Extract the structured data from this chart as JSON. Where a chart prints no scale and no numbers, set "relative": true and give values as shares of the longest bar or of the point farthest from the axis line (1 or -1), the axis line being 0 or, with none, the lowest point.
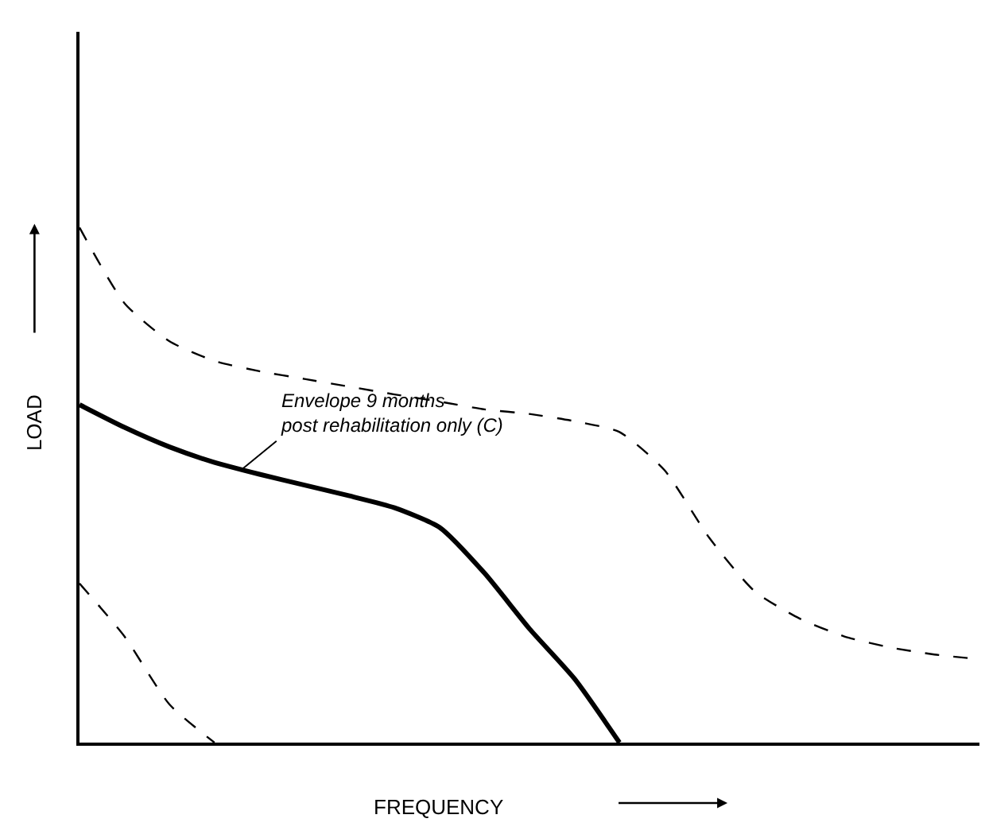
{
  "chart_data": {
    "type": "line",
    "relative": true,
    "xlabel": "FREQUENCY",
    "ylabel": "LOAD",
    "marker": "none",
    "categories": [
      null,
      null,
      null,
      null,
      null,
      null,
      null,
      null,
      null,
      null,
      null,
      null,
      null,
      null,
      null,
      null,
      null,
      null,
      null,
      null,
      null
    ],
    "series": [
      {
        "color": "#000000",
        "line_style": "dashed",
        "values": [
          1.0,
          0.853,
          0.779,
          0.741,
          0.721,
          0.706,
          0.691,
          0.676,
          0.662,
          0.647,
          0.638,
          0.624,
          0.603,
          0.529,
          0.397,
          0.294,
          0.241,
          0.206,
          0.185,
          0.171,
          0.162
        ]
      },
      {
        "color": "#000000",
        "line_style": "solid",
        "values": [
          0.656,
          0.612,
          0.574,
          0.544,
          0.521,
          0.5,
          0.479,
          0.456,
          0.418,
          0.329,
          0.221,
          0.124,
          0,
          null,
          null,
          null,
          null,
          null,
          null,
          null,
          null
        ]
      },
      {
        "color": "#000000",
        "line_style": "dashed",
        "values": [
          0.309,
          0.206,
          0.074,
          0,
          null,
          null,
          null,
          null,
          null,
          null,
          null,
          null,
          null,
          null,
          null,
          null,
          null,
          null,
          null,
          null,
          null
        ]
      }
    ],
    "annotations": [
      "Envelope 9 months\npost rehabilitation only (C)"
    ]
  }
}
